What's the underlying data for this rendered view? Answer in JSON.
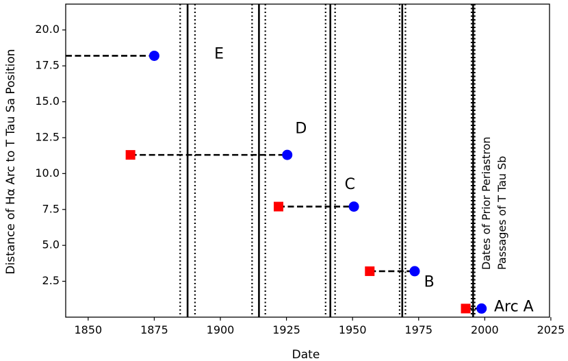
{
  "chart_data": {
    "type": "scatter",
    "title": "",
    "xlabel": "Date",
    "ylabel": "Distance of Hα Arc to T Tau Sa Position",
    "xlim": [
      1841.5,
      2024.5
    ],
    "ylim": [
      0.0,
      21.8
    ],
    "xticks": [
      1850,
      1875,
      1900,
      1925,
      1950,
      1975,
      2000,
      2025
    ],
    "yticks": [
      2.5,
      5.0,
      7.5,
      10.0,
      12.5,
      15.0,
      17.5,
      20.0
    ],
    "ytick_labels": [
      "2.5",
      "5.0",
      "7.5",
      "10.0",
      "12.5",
      "15.0",
      "17.5",
      "20.0"
    ],
    "grid": false,
    "arcs": [
      {
        "label": "E",
        "circle": {
          "x": 1875.0,
          "y": 18.2
        },
        "square": null,
        "line_from": 1841.5
      },
      {
        "label": "D",
        "circle": {
          "x": 1925.3,
          "y": 11.3
        },
        "square": {
          "x": 1866.0,
          "y": 11.3
        }
      },
      {
        "label": "C",
        "circle": {
          "x": 1950.5,
          "y": 7.7
        },
        "square": {
          "x": 1922.0,
          "y": 7.7
        }
      },
      {
        "label": "B",
        "circle": {
          "x": 1973.5,
          "y": 3.2
        },
        "square": {
          "x": 1956.5,
          "y": 3.2
        }
      },
      {
        "label": "Arc A",
        "circle": {
          "x": 1998.8,
          "y": 0.6
        },
        "square": {
          "x": 1992.8,
          "y": 0.6
        }
      }
    ],
    "labels": [
      {
        "text": "E",
        "x": 1899.5,
        "y": 18.3
      },
      {
        "text": "D",
        "x": 1930.5,
        "y": 13.1
      },
      {
        "text": "C",
        "x": 1949.0,
        "y": 9.2
      },
      {
        "text": "B",
        "x": 1979.0,
        "y": 2.4
      },
      {
        "text": "Arc A",
        "x": 2011.0,
        "y": 0.7
      }
    ],
    "periastron_lines": [
      {
        "x": 1887.6,
        "band": [
          1884.8,
          1890.4
        ]
      },
      {
        "x": 1914.6,
        "band": [
          1912.0,
          1917.0
        ]
      },
      {
        "x": 1941.6,
        "band": [
          1939.8,
          1943.4
        ]
      },
      {
        "x": 1968.8,
        "band": [
          1967.8,
          1970.0
        ]
      },
      {
        "x": 1995.6,
        "band": [
          1995.0,
          1996.2
        ]
      }
    ],
    "vertical_annotation": [
      "Dates of Prior Periastron",
      "Passages of T Tau Sb"
    ],
    "colors": {
      "circle": "#0000ff",
      "square": "#ff0000",
      "lines": "#000000"
    }
  }
}
